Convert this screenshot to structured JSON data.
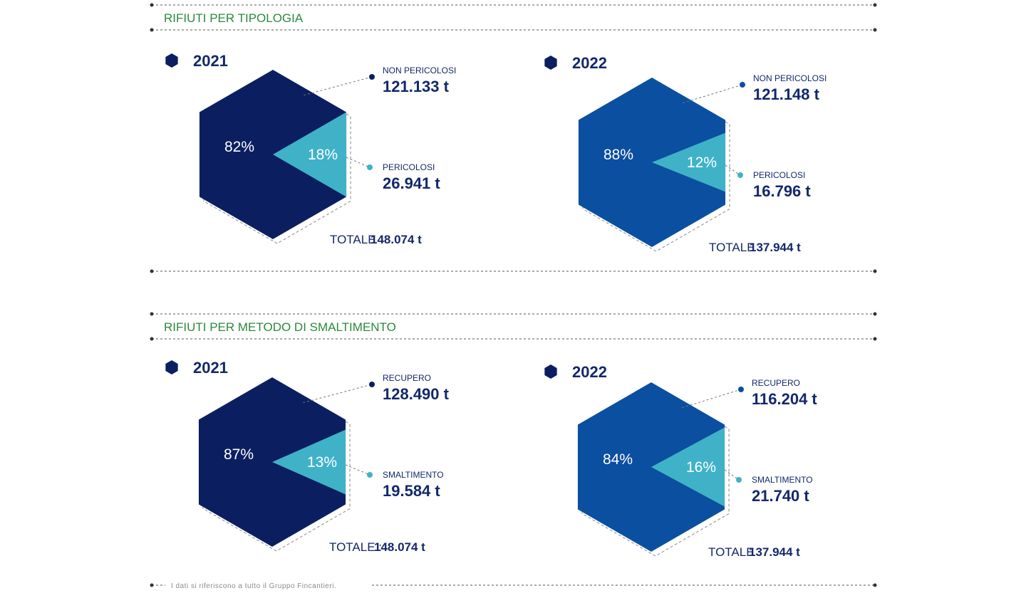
{
  "colors": {
    "dark_navy": "#0b1f60",
    "royal_blue": "#0b4fa0",
    "teal": "#3fb2c8",
    "title_green": "#2a8a3a",
    "text_navy": "#12286a",
    "dotted_line": "#555555"
  },
  "sections": [
    {
      "title": "RIFIUTI PER TIPOLOGIA"
    },
    {
      "title": "RIFIUTI PER METODO DI SMALTIMENTO"
    }
  ],
  "footnote": "I dati si riferiscono a tutto il Gruppo Fincantieri.",
  "chart_data": [
    {
      "type": "pie",
      "shape": "hexagon",
      "section": "RIFIUTI PER TIPOLOGIA",
      "year": "2021",
      "main_color": "dark_navy",
      "categories": [
        "NON PERICOLOSI",
        "PERICOLOSI"
      ],
      "values": [
        121133,
        26941
      ],
      "percent_labels": [
        "82%",
        "18%"
      ],
      "amount_labels": [
        "121.133 t",
        "26.941 t"
      ],
      "total_label": "TOTALE",
      "total_value": "148.074 t"
    },
    {
      "type": "pie",
      "shape": "hexagon",
      "section": "RIFIUTI PER TIPOLOGIA",
      "year": "2022",
      "main_color": "royal_blue",
      "categories": [
        "NON PERICOLOSI",
        "PERICOLOSI"
      ],
      "values": [
        121148,
        16796
      ],
      "percent_labels": [
        "88%",
        "12%"
      ],
      "amount_labels": [
        "121.148 t",
        "16.796 t"
      ],
      "total_label": "TOTALE",
      "total_value": "137.944 t"
    },
    {
      "type": "pie",
      "shape": "hexagon",
      "section": "RIFIUTI PER METODO DI SMALTIMENTO",
      "year": "2021",
      "main_color": "dark_navy",
      "categories": [
        "RECUPERO",
        "SMALTIMENTO"
      ],
      "values": [
        128490,
        19584
      ],
      "percent_labels": [
        "87%",
        "13%"
      ],
      "amount_labels": [
        "128.490 t",
        "19.584 t"
      ],
      "total_label": "TOTALE :",
      "total_value": "148.074 t"
    },
    {
      "type": "pie",
      "shape": "hexagon",
      "section": "RIFIUTI PER METODO DI SMALTIMENTO",
      "year": "2022",
      "main_color": "royal_blue",
      "categories": [
        "RECUPERO",
        "SMALTIMENTO"
      ],
      "values": [
        116204,
        21740
      ],
      "percent_labels": [
        "84%",
        "16%"
      ],
      "amount_labels": [
        "116.204 t",
        "21.740 t"
      ],
      "total_label": "TOTALE",
      "total_value": "137.944 t"
    }
  ]
}
